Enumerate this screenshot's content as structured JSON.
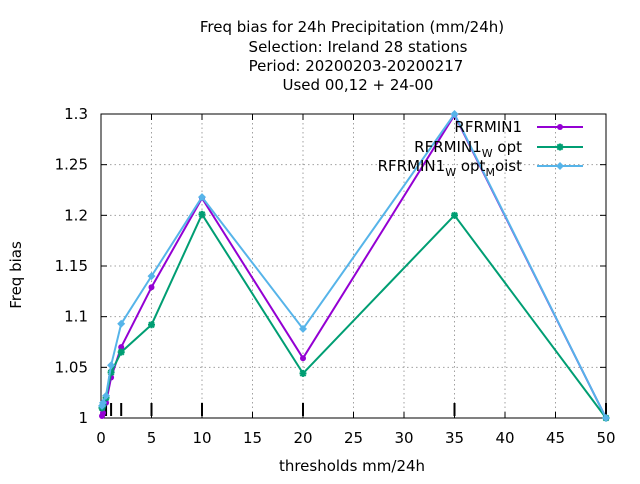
{
  "chart_data": {
    "type": "line",
    "title_lines": [
      "Freq bias  for 24h Precipitation (mm/24h)",
      "Selection: Ireland      28 stations",
      "Period: 20200203-20200217",
      "Used  00,12  + 24-00"
    ],
    "xlabel": "thresholds mm/24h",
    "ylabel": "Freq bias",
    "xlim": [
      0,
      50
    ],
    "ylim": [
      1,
      1.3
    ],
    "x_ticks": [
      "0",
      "5",
      "10",
      "15",
      "20",
      "25",
      "30",
      "35",
      "40",
      "45",
      "50"
    ],
    "y_ticks": [
      "1",
      "1.05",
      "1.1",
      "1.15",
      "1.2",
      "1.25",
      "1.3"
    ],
    "grid": true,
    "legend_position": "top-right",
    "threshold_markers": [
      0.1,
      0.2,
      0.5,
      1,
      2,
      5,
      10,
      20,
      35,
      50
    ],
    "series": [
      {
        "name": "RFRMIN1",
        "legend": {
          "base": "RFRMIN1",
          "sub1": "",
          "mid": "",
          "sub2": "",
          "tail": ""
        },
        "color": "#9400d3",
        "marker": "circle",
        "x": [
          0.1,
          0.2,
          0.5,
          1,
          2,
          5,
          10,
          20,
          35,
          50
        ],
        "y": [
          1.002,
          1.005,
          1.015,
          1.04,
          1.07,
          1.129,
          1.217,
          1.059,
          1.299,
          1.0
        ]
      },
      {
        "name": "RFRMIN1 W opt",
        "legend": {
          "base": "RFRMIN1",
          "sub1": "W",
          "mid": "opt",
          "sub2": "",
          "tail": ""
        },
        "color": "#009e73",
        "marker": "star",
        "x": [
          0.1,
          0.2,
          0.5,
          1,
          2,
          5,
          10,
          20,
          35,
          50
        ],
        "y": [
          1.01,
          1.013,
          1.02,
          1.045,
          1.065,
          1.092,
          1.201,
          1.044,
          1.2,
          1.0
        ]
      },
      {
        "name": "RFRMIN1 W opt M oist",
        "legend": {
          "base": "RFRMIN1",
          "sub1": "W",
          "mid": "opt",
          "sub2": "M",
          "tail": "oist"
        },
        "color": "#56b4e9",
        "marker": "diamond",
        "x": [
          0.1,
          0.2,
          0.5,
          1,
          2,
          5,
          10,
          20,
          35,
          50
        ],
        "y": [
          1.012,
          1.015,
          1.022,
          1.052,
          1.093,
          1.14,
          1.218,
          1.088,
          1.3,
          1.0
        ]
      }
    ]
  }
}
